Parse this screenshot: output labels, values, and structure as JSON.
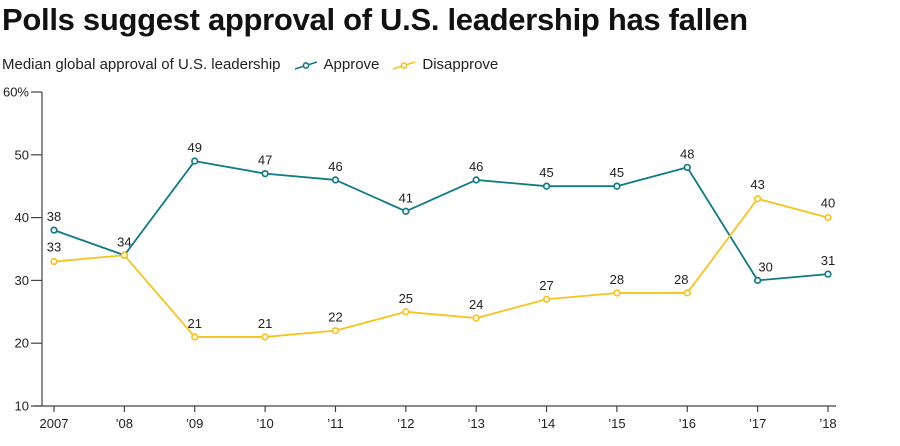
{
  "chart_data": {
    "type": "line",
    "title": "Polls suggest approval of U.S. leadership has fallen",
    "subtitle": "Median global approval of U.S. leadership",
    "xlabel": "",
    "ylabel": "",
    "x": [
      "2007",
      "’08",
      "’09",
      "’10",
      "’11",
      "’12",
      "’13",
      "’14",
      "’15",
      "’16",
      "’17",
      "’18"
    ],
    "ylim": [
      10,
      60
    ],
    "yticks": [
      10,
      20,
      30,
      40,
      50,
      60
    ],
    "ytick_labels": [
      "10",
      "20",
      "30",
      "40",
      "50",
      "60%"
    ],
    "grid": false,
    "legend_position": "top-left, inline with subtitle",
    "series": [
      {
        "name": "Approve",
        "color": "#0f7b86",
        "values": [
          38,
          34,
          49,
          47,
          46,
          41,
          46,
          45,
          45,
          48,
          30,
          31
        ]
      },
      {
        "name": "Disapprove",
        "color": "#f7c31e",
        "values": [
          33,
          34,
          21,
          21,
          22,
          25,
          24,
          27,
          28,
          28,
          43,
          40
        ]
      }
    ]
  }
}
